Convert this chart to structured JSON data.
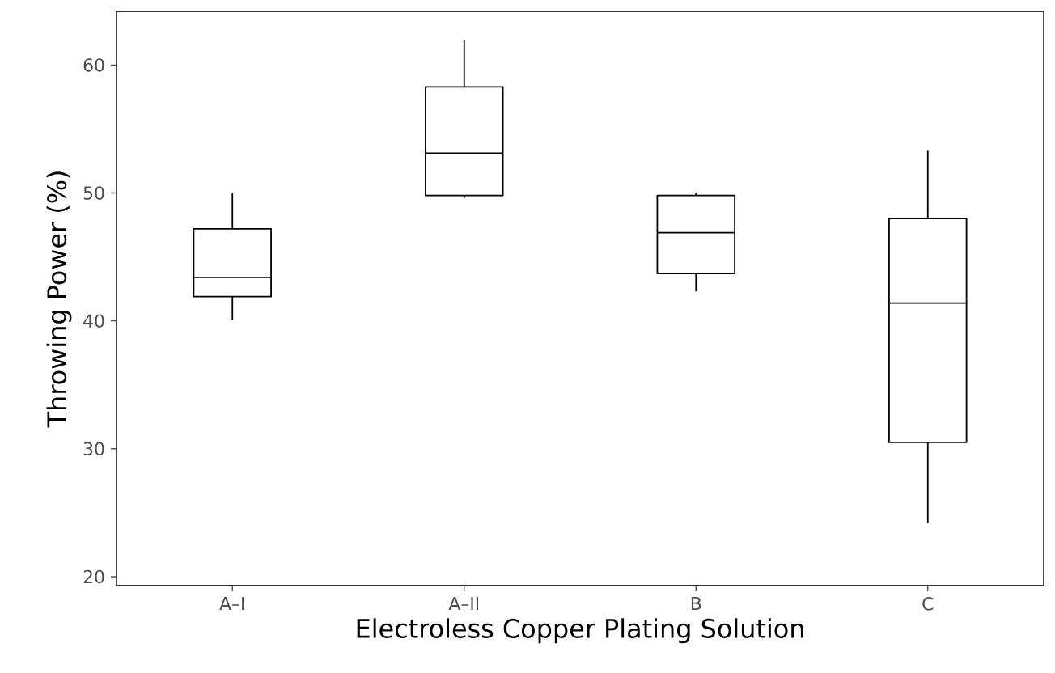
{
  "chart_data": {
    "type": "box",
    "xlabel": "Electroless Copper Plating Solution",
    "ylabel": "Throwing Power (%)",
    "categories": [
      "A–I",
      "A–II",
      "B",
      "C"
    ],
    "boxes": [
      {
        "low": 40.1,
        "q1": 41.9,
        "median": 43.4,
        "q3": 47.2,
        "high": 50.0
      },
      {
        "low": 49.6,
        "q1": 49.8,
        "median": 53.1,
        "q3": 58.3,
        "high": 62.0
      },
      {
        "low": 42.3,
        "q1": 43.7,
        "median": 46.9,
        "q3": 49.8,
        "high": 50.0
      },
      {
        "low": 24.2,
        "q1": 30.5,
        "median": 41.4,
        "q3": 48.0,
        "high": 53.3
      }
    ],
    "color": "#000000",
    "ylim": [
      19.3,
      64.2
    ],
    "yticks": [
      20,
      30,
      40,
      50,
      60
    ],
    "grid": false
  }
}
